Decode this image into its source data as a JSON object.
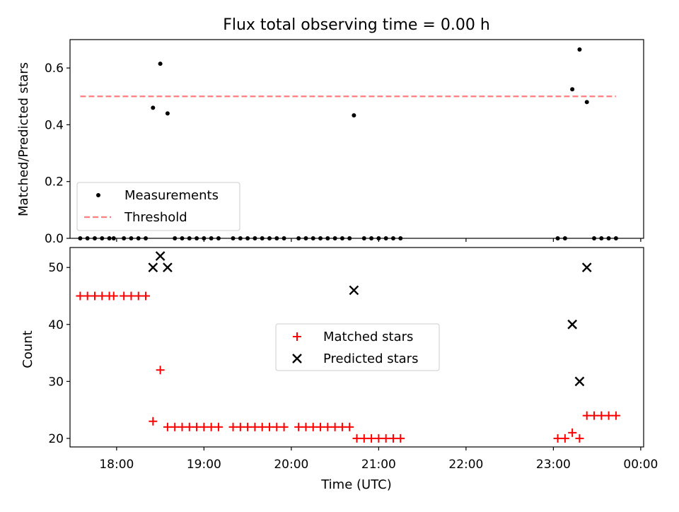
{
  "chart_data": [
    {
      "type": "scatter",
      "title": "Flux total observing time = 0.00 h",
      "xlabel": "",
      "ylabel": "Matched/Predicted stars",
      "xlim": [
        "17:28",
        "00:02"
      ],
      "ylim": [
        0,
        0.7
      ],
      "yticks": [
        "0.0",
        "0.2",
        "0.4",
        "0.6"
      ],
      "grid": false,
      "legend_position": "lower-left",
      "series": [
        {
          "name": "Measurements",
          "marker": "dot",
          "color": "#000000",
          "points": [
            [
              "17:35",
              0
            ],
            [
              "17:40",
              0
            ],
            [
              "17:45",
              0
            ],
            [
              "17:50",
              0
            ],
            [
              "17:55",
              0
            ],
            [
              "17:58",
              0
            ],
            [
              "18:05",
              0
            ],
            [
              "18:10",
              0
            ],
            [
              "18:15",
              0
            ],
            [
              "18:20",
              0
            ],
            [
              "18:25",
              0.46
            ],
            [
              "18:30",
              0.615
            ],
            [
              "18:35",
              0.44
            ],
            [
              "18:40",
              0
            ],
            [
              "18:45",
              0
            ],
            [
              "18:50",
              0
            ],
            [
              "18:55",
              0
            ],
            [
              "19:00",
              0
            ],
            [
              "19:05",
              0
            ],
            [
              "19:10",
              0
            ],
            [
              "19:20",
              0
            ],
            [
              "19:25",
              0
            ],
            [
              "19:30",
              0
            ],
            [
              "19:35",
              0
            ],
            [
              "19:40",
              0
            ],
            [
              "19:45",
              0
            ],
            [
              "19:50",
              0
            ],
            [
              "19:55",
              0
            ],
            [
              "20:05",
              0
            ],
            [
              "20:10",
              0
            ],
            [
              "20:15",
              0
            ],
            [
              "20:20",
              0
            ],
            [
              "20:25",
              0
            ],
            [
              "20:30",
              0
            ],
            [
              "20:35",
              0
            ],
            [
              "20:40",
              0
            ],
            [
              "20:43",
              0.433
            ],
            [
              "20:50",
              0
            ],
            [
              "20:55",
              0
            ],
            [
              "21:00",
              0
            ],
            [
              "21:05",
              0
            ],
            [
              "21:10",
              0
            ],
            [
              "21:15",
              0
            ],
            [
              "23:03",
              0
            ],
            [
              "23:08",
              0
            ],
            [
              "23:13",
              0.525
            ],
            [
              "23:18",
              0.665
            ],
            [
              "23:23",
              0.48
            ],
            [
              "23:28",
              0
            ],
            [
              "23:33",
              0
            ],
            [
              "23:38",
              0
            ],
            [
              "23:43",
              0
            ]
          ]
        },
        {
          "name": "Threshold",
          "marker": "dashed-line",
          "color": "#ff7f7f",
          "points": [
            [
              "17:35",
              0.5
            ],
            [
              "23:43",
              0.5
            ]
          ]
        }
      ]
    },
    {
      "type": "scatter",
      "title": "",
      "xlabel": "Time (UTC)",
      "ylabel": "Count",
      "xlim": [
        "17:28",
        "00:02"
      ],
      "ylim": [
        18.5,
        53.5
      ],
      "xticks": [
        "18:00",
        "19:00",
        "20:00",
        "21:00",
        "22:00",
        "23:00",
        "00:00"
      ],
      "yticks": [
        "20",
        "30",
        "40",
        "50"
      ],
      "grid": false,
      "legend_position": "center",
      "series": [
        {
          "name": "Matched stars",
          "marker": "plus",
          "color": "#ff0000",
          "points": [
            [
              "17:35",
              45
            ],
            [
              "17:40",
              45
            ],
            [
              "17:45",
              45
            ],
            [
              "17:50",
              45
            ],
            [
              "17:55",
              45
            ],
            [
              "17:58",
              45
            ],
            [
              "18:05",
              45
            ],
            [
              "18:10",
              45
            ],
            [
              "18:15",
              45
            ],
            [
              "18:20",
              45
            ],
            [
              "18:25",
              23
            ],
            [
              "18:30",
              32
            ],
            [
              "18:35",
              22
            ],
            [
              "18:40",
              22
            ],
            [
              "18:45",
              22
            ],
            [
              "18:50",
              22
            ],
            [
              "18:55",
              22
            ],
            [
              "19:00",
              22
            ],
            [
              "19:05",
              22
            ],
            [
              "19:10",
              22
            ],
            [
              "19:20",
              22
            ],
            [
              "19:25",
              22
            ],
            [
              "19:30",
              22
            ],
            [
              "19:35",
              22
            ],
            [
              "19:40",
              22
            ],
            [
              "19:45",
              22
            ],
            [
              "19:50",
              22
            ],
            [
              "19:55",
              22
            ],
            [
              "20:05",
              22
            ],
            [
              "20:10",
              22
            ],
            [
              "20:15",
              22
            ],
            [
              "20:20",
              22
            ],
            [
              "20:25",
              22
            ],
            [
              "20:30",
              22
            ],
            [
              "20:35",
              22
            ],
            [
              "20:40",
              22
            ],
            [
              "20:45",
              20
            ],
            [
              "20:50",
              20
            ],
            [
              "20:55",
              20
            ],
            [
              "21:00",
              20
            ],
            [
              "21:05",
              20
            ],
            [
              "21:10",
              20
            ],
            [
              "21:15",
              20
            ],
            [
              "23:03",
              20
            ],
            [
              "23:08",
              20
            ],
            [
              "23:13",
              21
            ],
            [
              "23:18",
              20
            ],
            [
              "23:23",
              24
            ],
            [
              "23:28",
              24
            ],
            [
              "23:33",
              24
            ],
            [
              "23:38",
              24
            ],
            [
              "23:43",
              24
            ]
          ]
        },
        {
          "name": "Predicted stars",
          "marker": "x",
          "color": "#000000",
          "points": [
            [
              "18:25",
              50
            ],
            [
              "18:30",
              52
            ],
            [
              "18:35",
              50
            ],
            [
              "20:43",
              46
            ],
            [
              "23:13",
              40
            ],
            [
              "23:18",
              30
            ],
            [
              "23:23",
              50
            ]
          ]
        }
      ]
    }
  ]
}
